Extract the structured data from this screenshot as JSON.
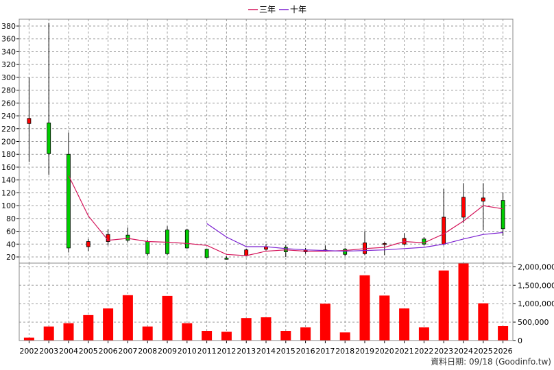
{
  "legend": {
    "items": [
      {
        "label": "三年",
        "color": "#d4145a"
      },
      {
        "label": "十年",
        "color": "#7a1fd1"
      }
    ]
  },
  "footer": "資料日期: 09/18 (Goodinfo.tw)",
  "colors": {
    "up": "#ff0000",
    "down": "#00cc00",
    "volume": "#ff0000",
    "ma3": "#d4145a",
    "ma10": "#7a1fd1"
  },
  "chart_data": [
    {
      "type": "candlestick",
      "categories": [
        "2002",
        "2003",
        "2004",
        "2005",
        "2006",
        "2007",
        "2008",
        "2009",
        "2010",
        "2011",
        "2012",
        "2013",
        "2014",
        "2015",
        "2016",
        "2017",
        "2018",
        "2019",
        "2020",
        "2021",
        "2022",
        "2023",
        "2024",
        "2025",
        "2026"
      ],
      "ylim": [
        20,
        380
      ],
      "yticks": [
        20,
        40,
        60,
        80,
        100,
        120,
        140,
        160,
        180,
        200,
        220,
        240,
        260,
        280,
        300,
        320,
        340,
        360,
        380
      ],
      "grid": true,
      "candles": [
        {
          "open": 228,
          "high": 300,
          "low": 168,
          "close": 236
        },
        {
          "open": 229,
          "high": 385,
          "low": 148,
          "close": 181
        },
        {
          "open": 180,
          "high": 214,
          "low": 27,
          "close": 34
        },
        {
          "open": 36,
          "high": 48,
          "low": 29,
          "close": 44
        },
        {
          "open": 44,
          "high": 63,
          "low": 38,
          "close": 55
        },
        {
          "open": 54,
          "high": 66,
          "low": 43,
          "close": 46
        },
        {
          "open": 44,
          "high": 47,
          "low": 22,
          "close": 25
        },
        {
          "open": 62,
          "high": 68,
          "low": 23,
          "close": 25
        },
        {
          "open": 62,
          "high": 64,
          "low": 33,
          "close": 34
        },
        {
          "open": 32,
          "high": 33,
          "low": 18,
          "close": 19
        },
        {
          "open": 18,
          "high": 21,
          "low": 16,
          "close": 17
        },
        {
          "open": 22,
          "high": 33,
          "low": 21,
          "close": 31
        },
        {
          "open": 32,
          "high": 40,
          "low": 30,
          "close": 36
        },
        {
          "open": 35,
          "high": 39,
          "low": 20,
          "close": 28
        },
        {
          "open": 28,
          "high": 34,
          "low": 25,
          "close": 31
        },
        {
          "open": 31,
          "high": 38,
          "low": 28,
          "close": 30
        },
        {
          "open": 32,
          "high": 34,
          "low": 21,
          "close": 24
        },
        {
          "open": 25,
          "high": 60,
          "low": 23,
          "close": 42
        },
        {
          "open": 40,
          "high": 43,
          "low": 23,
          "close": 41
        },
        {
          "open": 40,
          "high": 57,
          "low": 38,
          "close": 49
        },
        {
          "open": 48,
          "high": 51,
          "low": 38,
          "close": 40
        },
        {
          "open": 40,
          "high": 126,
          "low": 38,
          "close": 82
        },
        {
          "open": 82,
          "high": 135,
          "low": 73,
          "close": 113
        },
        {
          "open": 107,
          "high": 135,
          "low": 62,
          "close": 112
        },
        {
          "open": 108,
          "high": 120,
          "low": 53,
          "close": 64
        }
      ],
      "series": [
        {
          "name": "三年",
          "values": [
            null,
            null,
            147,
            84,
            46,
            49,
            44,
            43,
            41,
            38,
            24,
            22,
            29,
            31,
            29,
            29,
            30,
            33,
            35,
            44,
            42,
            56,
            76,
            100,
            95
          ]
        },
        {
          "name": "十年",
          "values": [
            null,
            null,
            null,
            null,
            null,
            null,
            null,
            null,
            null,
            72,
            51,
            36,
            36,
            33,
            31,
            30,
            29,
            30,
            31,
            33,
            35,
            40,
            48,
            55,
            58
          ]
        }
      ]
    },
    {
      "type": "bar",
      "categories": [
        "2002",
        "2003",
        "2004",
        "2005",
        "2006",
        "2007",
        "2008",
        "2009",
        "2010",
        "2011",
        "2012",
        "2013",
        "2014",
        "2015",
        "2016",
        "2017",
        "2018",
        "2019",
        "2020",
        "2021",
        "2022",
        "2023",
        "2024",
        "2025",
        "2026"
      ],
      "values": [
        80000,
        380000,
        470000,
        690000,
        870000,
        1230000,
        380000,
        1210000,
        470000,
        260000,
        240000,
        610000,
        630000,
        260000,
        360000,
        1000000,
        220000,
        1770000,
        1220000,
        870000,
        360000,
        1900000,
        2090000,
        1010000,
        390000
      ],
      "ylim": [
        0,
        2100000
      ],
      "yticks": [
        0,
        500000,
        1000000,
        1500000,
        2000000
      ],
      "ytick_labels": [
        "0",
        "500,000",
        "1,000,000",
        "1,500,000",
        "2,000,000"
      ],
      "grid": true
    }
  ]
}
